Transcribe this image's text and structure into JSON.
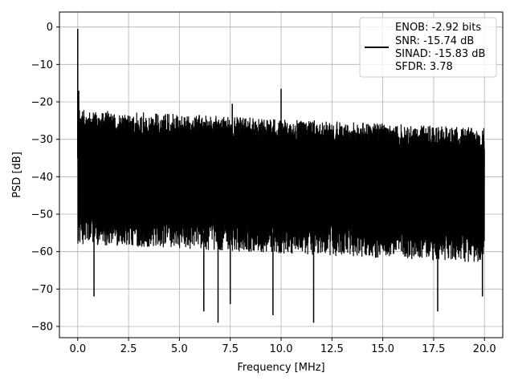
{
  "chart_data": {
    "type": "line",
    "xlabel": "Frequency [MHz]",
    "ylabel": "PSD [dB]",
    "xlim": [
      -0.9,
      20.9
    ],
    "ylim": [
      -83,
      4
    ],
    "xticks": [
      0.0,
      2.5,
      5.0,
      7.5,
      10.0,
      12.5,
      15.0,
      17.5,
      20.0
    ],
    "xtick_labels": [
      "0.0",
      "2.5",
      "5.0",
      "7.5",
      "10.0",
      "12.5",
      "15.0",
      "17.5",
      "20.0"
    ],
    "yticks": [
      0,
      -10,
      -20,
      -30,
      -40,
      -50,
      -60,
      -70,
      -80
    ],
    "ytick_labels": [
      "0",
      "−10",
      "−20",
      "−30",
      "−40",
      "−50",
      "−60",
      "−70",
      "−80"
    ],
    "grid": true,
    "legend_position": "top-right",
    "legend_lines": [
      "ENOB: -2.92 bits",
      "SNR: -15.74 dB",
      "SINAD: -15.83 dB",
      "SFDR: 3.78"
    ],
    "series": [
      {
        "color": "#000000",
        "noise_floor": {
          "f_start": 0.0,
          "f_end": 20.0,
          "upper_envelope_start": -22,
          "upper_envelope_end": -27,
          "lower_envelope_start": -58,
          "lower_envelope_end": -63
        },
        "peaks": [
          {
            "x": 0.0,
            "y": -0.5
          },
          {
            "x": 0.05,
            "y": -17
          },
          {
            "x": 7.6,
            "y": -20.5
          },
          {
            "x": 10.0,
            "y": -16.5
          }
        ],
        "dips": [
          {
            "x": 0.8,
            "y": -72
          },
          {
            "x": 6.2,
            "y": -76
          },
          {
            "x": 6.9,
            "y": -79
          },
          {
            "x": 7.5,
            "y": -74
          },
          {
            "x": 9.6,
            "y": -77
          },
          {
            "x": 11.6,
            "y": -79
          },
          {
            "x": 17.7,
            "y": -76
          },
          {
            "x": 19.9,
            "y": -72
          }
        ]
      }
    ]
  }
}
